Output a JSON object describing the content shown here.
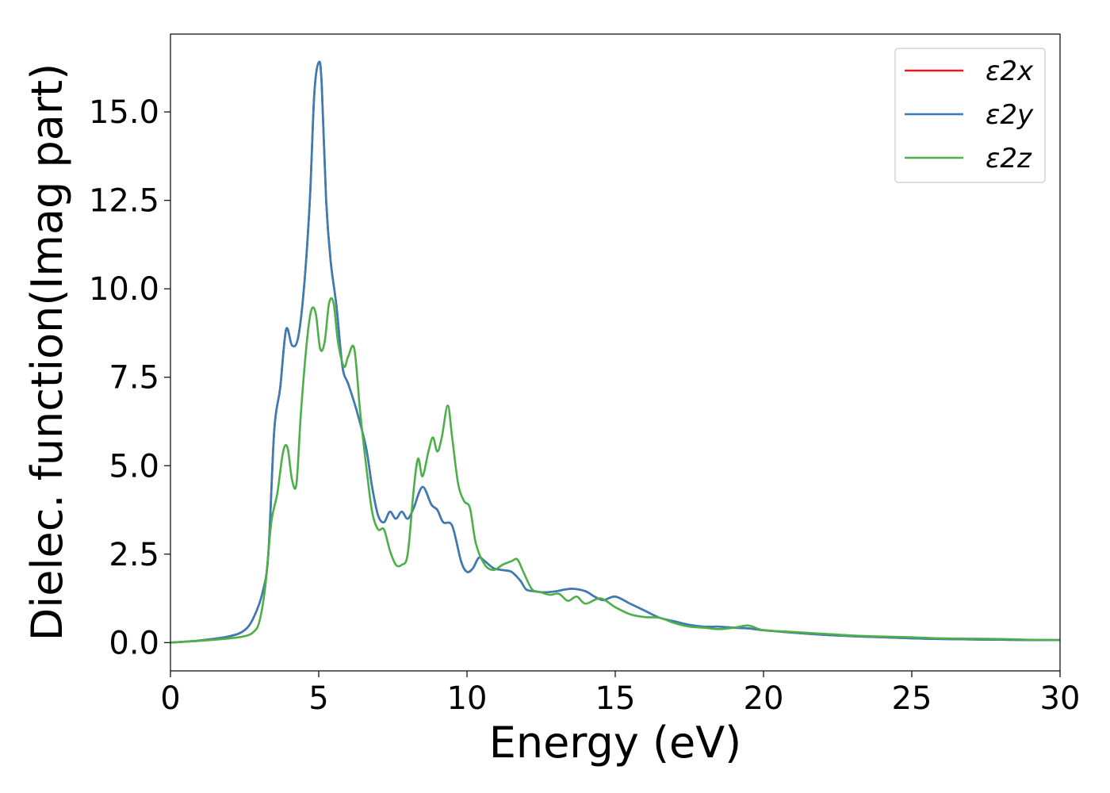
{
  "chart_data": {
    "type": "line",
    "title": "",
    "xlabel": "Energy (eV)",
    "ylabel": "Dielec. function(Imag part)",
    "xlim": [
      0,
      30
    ],
    "ylim": [
      -0.8,
      17.2
    ],
    "xticks": [
      0,
      5,
      10,
      15,
      20,
      25,
      30
    ],
    "xtick_labels": [
      "0",
      "5",
      "10",
      "15",
      "20",
      "25",
      "30"
    ],
    "yticks": [
      0.0,
      2.5,
      5.0,
      7.5,
      10.0,
      12.5,
      15.0
    ],
    "ytick_labels": [
      "0.0",
      "2.5",
      "5.0",
      "7.5",
      "10.0",
      "12.5",
      "15.0"
    ],
    "grid": false,
    "legend_position": "top-right",
    "series": [
      {
        "name": "ε2x",
        "color": "#e41a1c",
        "x": [
          0,
          1,
          2,
          2.5,
          2.8,
          3.1,
          3.3,
          3.5,
          3.7,
          3.9,
          4.1,
          4.3,
          4.5,
          4.7,
          4.85,
          5.0,
          5.1,
          5.25,
          5.4,
          5.6,
          5.8,
          6.0,
          6.3,
          6.6,
          6.8,
          7.0,
          7.2,
          7.4,
          7.6,
          7.8,
          8.0,
          8.2,
          8.5,
          8.8,
          9.0,
          9.2,
          9.5,
          9.8,
          10.0,
          10.2,
          10.4,
          10.6,
          10.9,
          11.2,
          11.5,
          11.8,
          12.0,
          12.3,
          12.6,
          13.0,
          13.3,
          13.6,
          14.0,
          14.3,
          14.6,
          15.0,
          15.5,
          16.0,
          16.5,
          17.0,
          17.5,
          18.0,
          18.5,
          19.0,
          19.5,
          20,
          21,
          22,
          23,
          24,
          25,
          26,
          27,
          28,
          29,
          30
        ],
        "y": [
          0.0,
          0.06,
          0.18,
          0.35,
          0.7,
          1.4,
          2.5,
          6.0,
          7.2,
          8.85,
          8.4,
          8.6,
          10.0,
          12.5,
          15.5,
          16.4,
          15.8,
          12.5,
          10.8,
          9.5,
          7.8,
          7.3,
          6.5,
          5.5,
          4.4,
          3.6,
          3.4,
          3.7,
          3.5,
          3.7,
          3.5,
          3.8,
          4.4,
          3.9,
          3.75,
          3.4,
          3.3,
          2.3,
          2.0,
          2.1,
          2.4,
          2.3,
          2.1,
          2.05,
          2.0,
          1.75,
          1.5,
          1.45,
          1.42,
          1.45,
          1.5,
          1.52,
          1.45,
          1.3,
          1.2,
          1.3,
          1.1,
          0.9,
          0.7,
          0.6,
          0.5,
          0.45,
          0.45,
          0.42,
          0.4,
          0.35,
          0.28,
          0.22,
          0.18,
          0.15,
          0.12,
          0.1,
          0.09,
          0.08,
          0.07,
          0.07
        ]
      },
      {
        "name": "ε2y",
        "color": "#377eb8",
        "x": [
          0,
          1,
          2,
          2.5,
          2.8,
          3.1,
          3.3,
          3.5,
          3.7,
          3.9,
          4.1,
          4.3,
          4.5,
          4.7,
          4.85,
          5.0,
          5.1,
          5.25,
          5.4,
          5.6,
          5.8,
          6.0,
          6.3,
          6.6,
          6.8,
          7.0,
          7.2,
          7.4,
          7.6,
          7.8,
          8.0,
          8.2,
          8.5,
          8.8,
          9.0,
          9.2,
          9.5,
          9.8,
          10.0,
          10.2,
          10.4,
          10.6,
          10.9,
          11.2,
          11.5,
          11.8,
          12.0,
          12.3,
          12.6,
          13.0,
          13.3,
          13.6,
          14.0,
          14.3,
          14.6,
          15.0,
          15.5,
          16.0,
          16.5,
          17.0,
          17.5,
          18.0,
          18.5,
          19.0,
          19.5,
          20,
          21,
          22,
          23,
          24,
          25,
          26,
          27,
          28,
          29,
          30
        ],
        "y": [
          0.0,
          0.06,
          0.18,
          0.35,
          0.7,
          1.4,
          2.5,
          6.0,
          7.2,
          8.85,
          8.4,
          8.6,
          10.0,
          12.5,
          15.5,
          16.4,
          15.8,
          12.5,
          10.8,
          9.5,
          7.8,
          7.3,
          6.5,
          5.5,
          4.4,
          3.6,
          3.4,
          3.7,
          3.5,
          3.7,
          3.5,
          3.8,
          4.4,
          3.9,
          3.75,
          3.4,
          3.3,
          2.3,
          2.0,
          2.1,
          2.4,
          2.3,
          2.1,
          2.05,
          2.0,
          1.75,
          1.5,
          1.45,
          1.42,
          1.45,
          1.5,
          1.52,
          1.45,
          1.3,
          1.2,
          1.3,
          1.1,
          0.9,
          0.7,
          0.6,
          0.5,
          0.45,
          0.45,
          0.42,
          0.4,
          0.35,
          0.28,
          0.22,
          0.18,
          0.15,
          0.12,
          0.1,
          0.09,
          0.08,
          0.07,
          0.07
        ]
      },
      {
        "name": "ε2z",
        "color": "#4daf4a",
        "x": [
          0,
          1,
          2,
          2.5,
          2.8,
          3.0,
          3.2,
          3.4,
          3.6,
          3.8,
          3.95,
          4.1,
          4.25,
          4.4,
          4.6,
          4.75,
          4.9,
          5.05,
          5.2,
          5.35,
          5.5,
          5.65,
          5.85,
          6.0,
          6.2,
          6.4,
          6.6,
          6.8,
          7.0,
          7.2,
          7.4,
          7.6,
          7.8,
          8.0,
          8.2,
          8.35,
          8.5,
          8.7,
          8.85,
          9.0,
          9.15,
          9.35,
          9.5,
          9.7,
          9.9,
          10.1,
          10.3,
          10.6,
          10.9,
          11.2,
          11.5,
          11.7,
          11.9,
          12.2,
          12.5,
          12.8,
          13.1,
          13.4,
          13.7,
          14.0,
          14.5,
          15.0,
          15.5,
          16.0,
          16.5,
          17.0,
          17.5,
          18.0,
          18.5,
          19.0,
          19.5,
          20,
          21,
          22,
          23,
          24,
          25,
          26,
          27,
          28,
          29,
          30
        ],
        "y": [
          0.0,
          0.05,
          0.12,
          0.18,
          0.3,
          0.6,
          1.6,
          3.4,
          4.2,
          5.4,
          5.5,
          4.6,
          4.5,
          6.5,
          8.5,
          9.4,
          9.3,
          8.3,
          8.5,
          9.6,
          9.6,
          8.5,
          7.8,
          8.1,
          8.3,
          6.5,
          5.0,
          3.7,
          3.2,
          3.2,
          2.6,
          2.2,
          2.2,
          2.5,
          4.3,
          5.2,
          4.7,
          5.4,
          5.8,
          5.4,
          5.8,
          6.7,
          5.8,
          4.5,
          4.0,
          3.8,
          2.8,
          2.2,
          2.05,
          2.2,
          2.3,
          2.35,
          2.0,
          1.5,
          1.42,
          1.35,
          1.38,
          1.18,
          1.3,
          1.1,
          1.25,
          1.0,
          0.8,
          0.72,
          0.7,
          0.55,
          0.45,
          0.42,
          0.38,
          0.42,
          0.48,
          0.35,
          0.3,
          0.25,
          0.2,
          0.17,
          0.15,
          0.12,
          0.11,
          0.1,
          0.08,
          0.07
        ]
      }
    ]
  }
}
